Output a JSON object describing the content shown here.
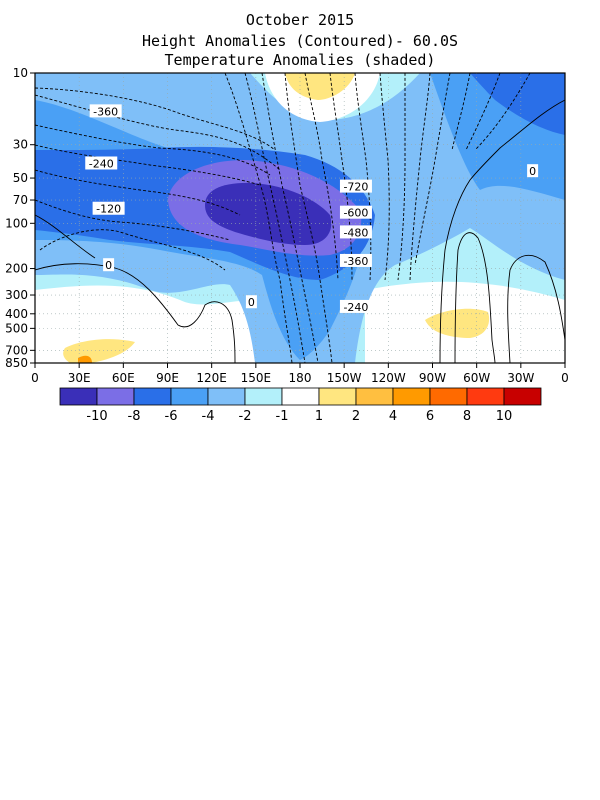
{
  "chart_data": {
    "type": "heatmap",
    "title": "October 2015",
    "subtitle_1": "Height Anomalies (Contoured)- 60.0S",
    "subtitle_2": "Temperature Anomalies (shaded)",
    "x_axis": {
      "ticks": [
        "0",
        "30E",
        "60E",
        "90E",
        "120E",
        "150E",
        "180",
        "150W",
        "120W",
        "90W",
        "60W",
        "30W",
        "0"
      ],
      "lon": [
        0,
        30,
        60,
        90,
        120,
        150,
        180,
        210,
        240,
        270,
        300,
        330,
        360
      ]
    },
    "y_axis": {
      "scale": "log-pressure",
      "ticks": [
        "10",
        "30",
        "50",
        "70",
        "100",
        "200",
        "300",
        "400",
        "500",
        "700",
        "850"
      ],
      "hpa": [
        10,
        30,
        50,
        70,
        100,
        200,
        300,
        400,
        500,
        700,
        850
      ]
    },
    "contour_labels": [
      {
        "text": "-360",
        "lon": 48,
        "p": 18
      },
      {
        "text": "-240",
        "lon": 45,
        "p": 40
      },
      {
        "text": "-120",
        "lon": 50,
        "p": 80
      },
      {
        "text": "0",
        "lon": 50,
        "p": 190
      },
      {
        "text": "0",
        "lon": 147,
        "p": 335
      },
      {
        "text": "-720",
        "lon": 218,
        "p": 57
      },
      {
        "text": "-600",
        "lon": 218,
        "p": 85
      },
      {
        "text": "-480",
        "lon": 218,
        "p": 115
      },
      {
        "text": "-360",
        "lon": 218,
        "p": 178
      },
      {
        "text": "-240",
        "lon": 218,
        "p": 360
      },
      {
        "text": "0",
        "lon": 338,
        "p": 45
      }
    ],
    "colorbar": {
      "labels": [
        "-10",
        "-8",
        "-6",
        "-4",
        "-2",
        "-1",
        "1",
        "2",
        "4",
        "6",
        "8",
        "10"
      ],
      "colors": [
        "#3a2fb8",
        "#7b6ee6",
        "#2a6fe8",
        "#4aa0f5",
        "#7fbff8",
        "#b3f0fa",
        "#ffffff",
        "#ffe680",
        "#ffbf40",
        "#ff9a00",
        "#ff6a00",
        "#ff3a10",
        "#c80000"
      ]
    },
    "grid": "dotted",
    "legend": "bottom"
  }
}
